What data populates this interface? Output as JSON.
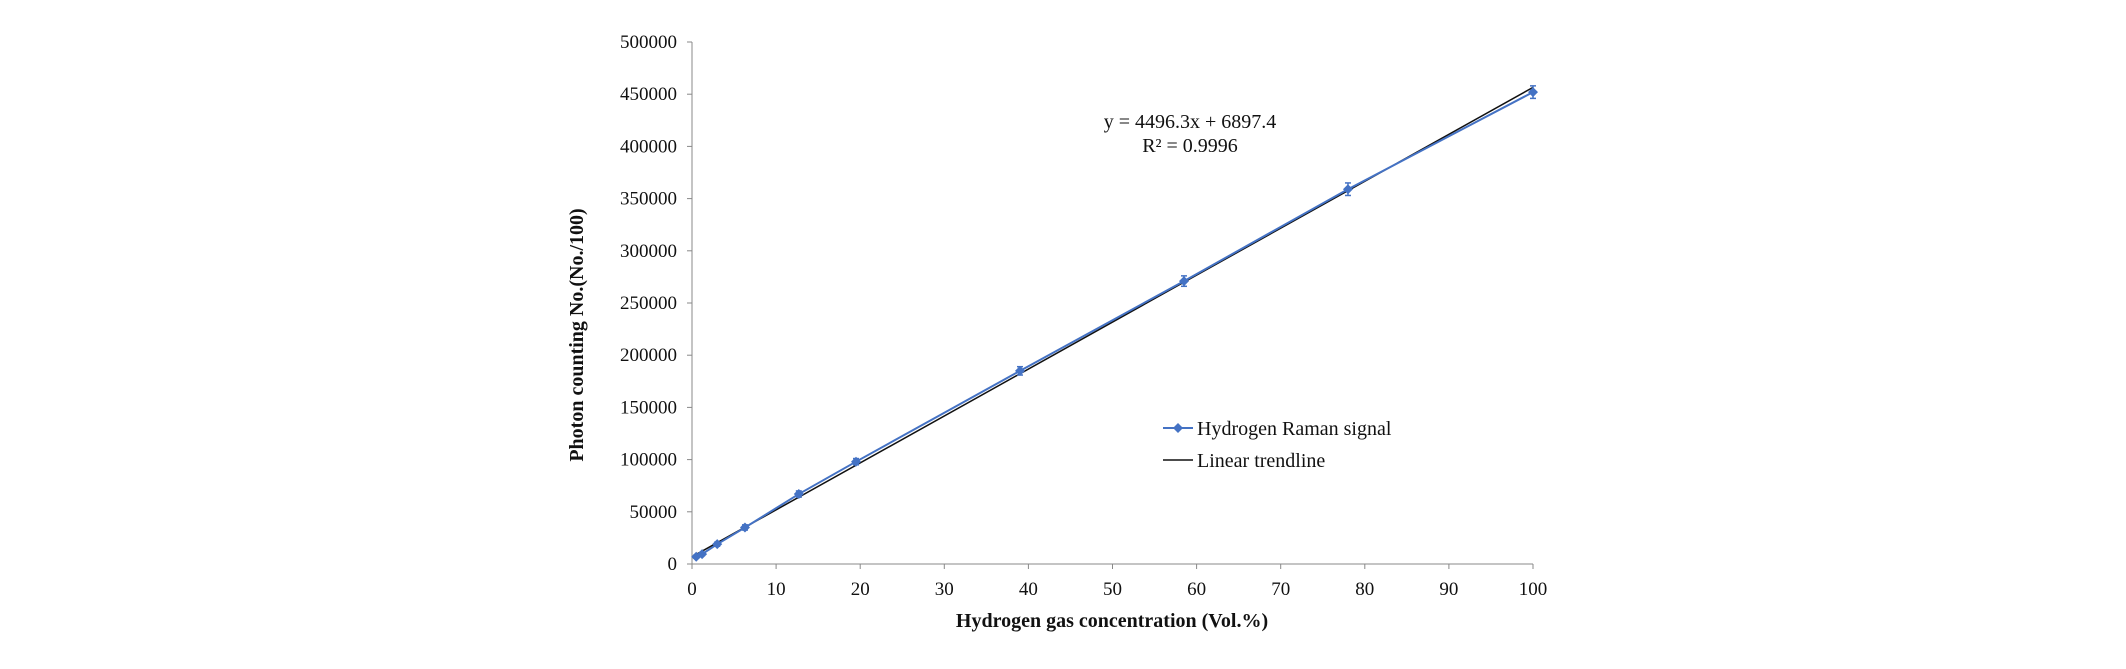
{
  "chart_data": {
    "type": "scatter",
    "title": "",
    "xlabel": "Hydrogen gas concentration (Vol.%)",
    "ylabel": "Photon counting No.(No./100)",
    "xlim": [
      0,
      100
    ],
    "ylim": [
      0,
      500000
    ],
    "xticks": [
      0,
      10,
      20,
      30,
      40,
      50,
      60,
      70,
      80,
      90,
      100
    ],
    "yticks": [
      0,
      50000,
      100000,
      150000,
      200000,
      250000,
      300000,
      350000,
      400000,
      450000,
      500000
    ],
    "grid": false,
    "legend_position": "center-right",
    "series": [
      {
        "name": "Hydrogen Raman signal",
        "color": "#4472C4",
        "marker": "diamond",
        "x": [
          0.5,
          1.2,
          3,
          6.3,
          12.7,
          19.5,
          39,
          58.5,
          78,
          100
        ],
        "y": [
          7000,
          9500,
          19000,
          35000,
          67000,
          98000,
          185000,
          271000,
          359000,
          452000
        ],
        "error": [
          1500,
          1500,
          2000,
          2500,
          3000,
          3000,
          4000,
          5000,
          6000,
          6000
        ]
      }
    ],
    "trendline": {
      "name": "Linear trendline",
      "color": "#111111",
      "slope": 4496.3,
      "intercept": 6897.4
    },
    "annotations": {
      "equation": "y = 4496.3x + 6897.4",
      "r_squared": "R² = 0.9996"
    }
  }
}
